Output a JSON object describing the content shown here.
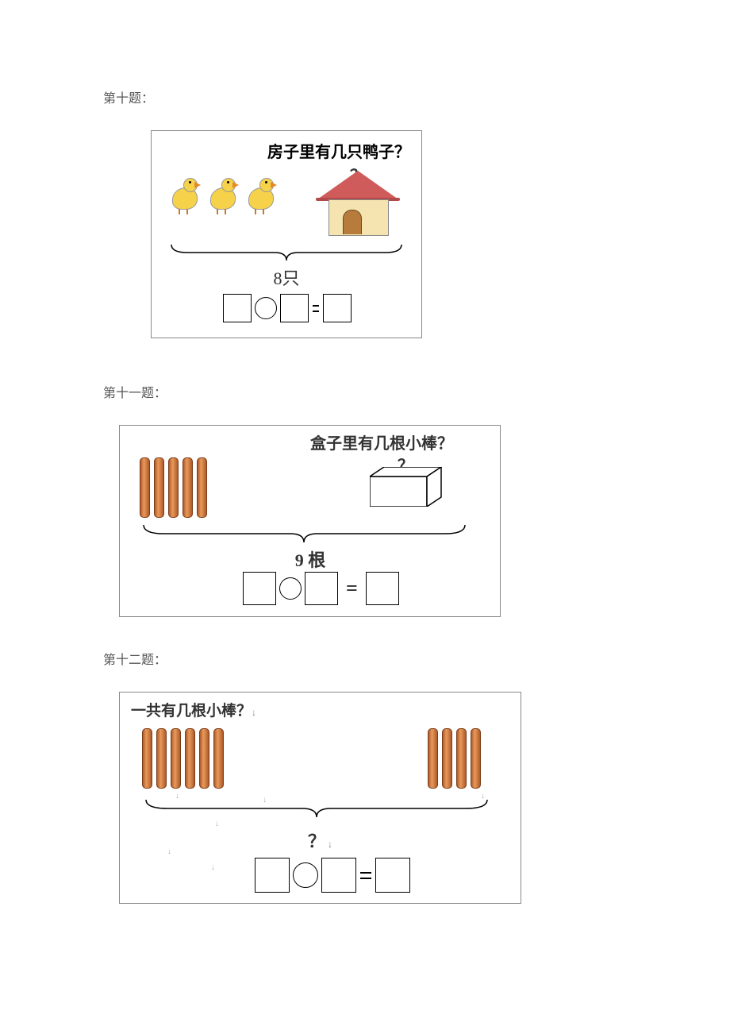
{
  "colors": {
    "text": "#333333",
    "label": "#555555",
    "stick_dark": "#b05a2a",
    "stick_light": "#e89a5a",
    "stick_border": "#7a3d1a",
    "duck_body": "#f6d24a",
    "duck_beak": "#e58a2a",
    "roof": "#cf5b5b",
    "wall": "#f5e3b0",
    "door": "#b77b3c",
    "border": "#888888",
    "black": "#000000"
  },
  "typography": {
    "label_fontsize_pt": 12,
    "question_fontsize_pt": 15,
    "total_fontsize_pt": 16,
    "font_family_text": "SimSun",
    "font_family_title": "KaiTi"
  },
  "p10": {
    "label": "第十题：",
    "question": "房子里有几只鸭子？",
    "qmark": "？",
    "duck_count": 3,
    "total_text": "8只",
    "total_value": 8,
    "equation": {
      "box_count": 3,
      "operator_shape": "circle",
      "separator": "="
    }
  },
  "p11": {
    "label": "第十一题：",
    "question": "盒子里有几根小棒？",
    "qmark": "？",
    "stick_count": 5,
    "total_text": "9 根",
    "total_value": 9,
    "equation": {
      "box_count": 3,
      "operator_shape": "circle",
      "separator": "="
    }
  },
  "p12": {
    "label": "第十二题：",
    "question": "一共有几根小棒？",
    "left_sticks": 6,
    "right_sticks": 4,
    "qmark": "？",
    "qmark_suffix": " ↓",
    "equation": {
      "box_count": 3,
      "operator_shape": "circle",
      "separator": "="
    }
  }
}
